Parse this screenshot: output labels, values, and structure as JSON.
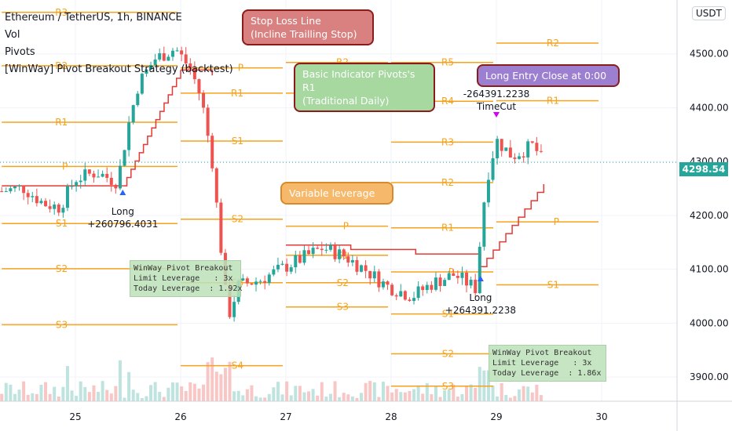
{
  "legend": {
    "symbol": "Ethereum / TetherUS, 1h, BINANCE",
    "indicators": [
      "Vol",
      "Pivots",
      "[WinWay] Pivot Breakout Strategy (backtest)"
    ]
  },
  "currency_button": "USDT",
  "last_price": "4298.54",
  "callouts": {
    "stop_loss": [
      "Stop Loss Line",
      "(Incline Trailling Stop)"
    ],
    "pivot": [
      "Basic Indicator Pivots's R1",
      "(Traditional Daily)"
    ],
    "leverage": [
      "Variable leverage"
    ],
    "time_cut": [
      "Long Entry Close at 0:00"
    ]
  },
  "info_boxes": [
    {
      "title": "WinWay Pivot Breakout",
      "limit": "Limit Leverage   : 3x",
      "today": "Today Leverage  : 1.92x"
    },
    {
      "title": "WinWay Pivot Breakout",
      "limit": "Limit Leverage   : 3x",
      "today": "Today Leverage  : 1.86x"
    }
  ],
  "colors": {
    "up": "#26a69a",
    "down": "#ef5350",
    "pivot": "#f7a21c",
    "stop": "#e53935",
    "axis_bg": "#ffffff"
  },
  "chart_data": {
    "type": "candlestick",
    "title": "Ethereum / TetherUS, 1h, BINANCE",
    "x_ticks": [
      "25",
      "26",
      "27",
      "28",
      "29",
      "30"
    ],
    "y_ticks": [
      3900,
      4000,
      4100,
      4200,
      4300,
      4400,
      4500
    ],
    "y_tick_labels": [
      "3900.00",
      "4000.00",
      "4100.00",
      "4200.00",
      "4300.00",
      "4400.00",
      "4500.00"
    ],
    "ylim": [
      3855,
      4600
    ],
    "last_price": 4298.54,
    "trades": [
      {
        "label": "Long",
        "value": "+260796.4031",
        "day": 25.45
      },
      {
        "label": "Long",
        "value": "+264391.2238",
        "day": 28.85
      },
      {
        "label": "TimeCut",
        "value": "-264391.2238",
        "day": 29.0
      }
    ],
    "pivot_levels": [
      {
        "day_start": 24.3,
        "day_end": 26.0,
        "levels": [
          {
            "name": "R3",
            "value": 4577
          },
          {
            "name": "R2",
            "value": 4478
          },
          {
            "name": "P",
            "value": 4291
          },
          {
            "name": "R1",
            "value": 4373
          },
          {
            "name": "S1",
            "value": 4185
          },
          {
            "name": "S2",
            "value": 4101
          },
          {
            "name": "S3",
            "value": 3997
          }
        ]
      },
      {
        "day_start": 26.0,
        "day_end": 27.0,
        "levels": [
          {
            "name": "R1",
            "value": 4427
          },
          {
            "name": "P",
            "value": 4474
          },
          {
            "name": "S1",
            "value": 4338
          },
          {
            "name": "S2",
            "value": 4193
          },
          {
            "name": "S3",
            "value": 4075
          },
          {
            "name": "S4",
            "value": 3921
          }
        ]
      },
      {
        "day_start": 27.0,
        "day_end": 28.0,
        "levels": [
          {
            "name": "R2",
            "value": 4484
          },
          {
            "name": "R1",
            "value": 4427
          },
          {
            "name": "P",
            "value": 4180
          },
          {
            "name": "S1",
            "value": 4126
          },
          {
            "name": "S2",
            "value": 4075
          },
          {
            "name": "S3",
            "value": 4030
          }
        ]
      },
      {
        "day_start": 28.0,
        "day_end": 29.0,
        "levels": [
          {
            "name": "R5",
            "value": 4484
          },
          {
            "name": "R4",
            "value": 4412
          },
          {
            "name": "R3",
            "value": 4336
          },
          {
            "name": "R2",
            "value": 4261
          },
          {
            "name": "R1",
            "value": 4177
          },
          {
            "name": "P",
            "value": 4095
          },
          {
            "name": "S1",
            "value": 4017
          },
          {
            "name": "S2",
            "value": 3943
          },
          {
            "name": "S3",
            "value": 3883
          }
        ]
      },
      {
        "day_start": 29.0,
        "day_end": 30.0,
        "levels": [
          {
            "name": "R2",
            "value": 4520
          },
          {
            "name": "R1",
            "value": 4413
          },
          {
            "name": "P",
            "value": 4188
          },
          {
            "name": "S1",
            "value": 4071
          }
        ]
      }
    ],
    "close_series": [
      {
        "day": 24.3,
        "close": 4245
      },
      {
        "day": 24.5,
        "close": 4252
      },
      {
        "day": 24.7,
        "close": 4222
      },
      {
        "day": 24.85,
        "close": 4215
      },
      {
        "day": 25.0,
        "close": 4268
      },
      {
        "day": 25.2,
        "close": 4280
      },
      {
        "day": 25.4,
        "close": 4262
      },
      {
        "day": 25.5,
        "close": 4365
      },
      {
        "day": 25.6,
        "close": 4445
      },
      {
        "day": 25.75,
        "close": 4490
      },
      {
        "day": 25.95,
        "close": 4510
      },
      {
        "day": 26.1,
        "close": 4470
      },
      {
        "day": 26.2,
        "close": 4415
      },
      {
        "day": 26.3,
        "close": 4300
      },
      {
        "day": 26.45,
        "close": 4010
      },
      {
        "day": 26.55,
        "close": 4070
      },
      {
        "day": 26.75,
        "close": 4080
      },
      {
        "day": 26.95,
        "close": 4100
      },
      {
        "day": 27.15,
        "close": 4120
      },
      {
        "day": 27.35,
        "close": 4140
      },
      {
        "day": 27.55,
        "close": 4125
      },
      {
        "day": 27.75,
        "close": 4100
      },
      {
        "day": 27.95,
        "close": 4070
      },
      {
        "day": 28.2,
        "close": 4050
      },
      {
        "day": 28.4,
        "close": 4075
      },
      {
        "day": 28.6,
        "close": 4090
      },
      {
        "day": 28.8,
        "close": 4065
      },
      {
        "day": 28.9,
        "close": 4260
      },
      {
        "day": 29.0,
        "close": 4340
      },
      {
        "day": 29.15,
        "close": 4310
      },
      {
        "day": 29.35,
        "close": 4330
      },
      {
        "day": 29.45,
        "close": 4298
      }
    ]
  }
}
